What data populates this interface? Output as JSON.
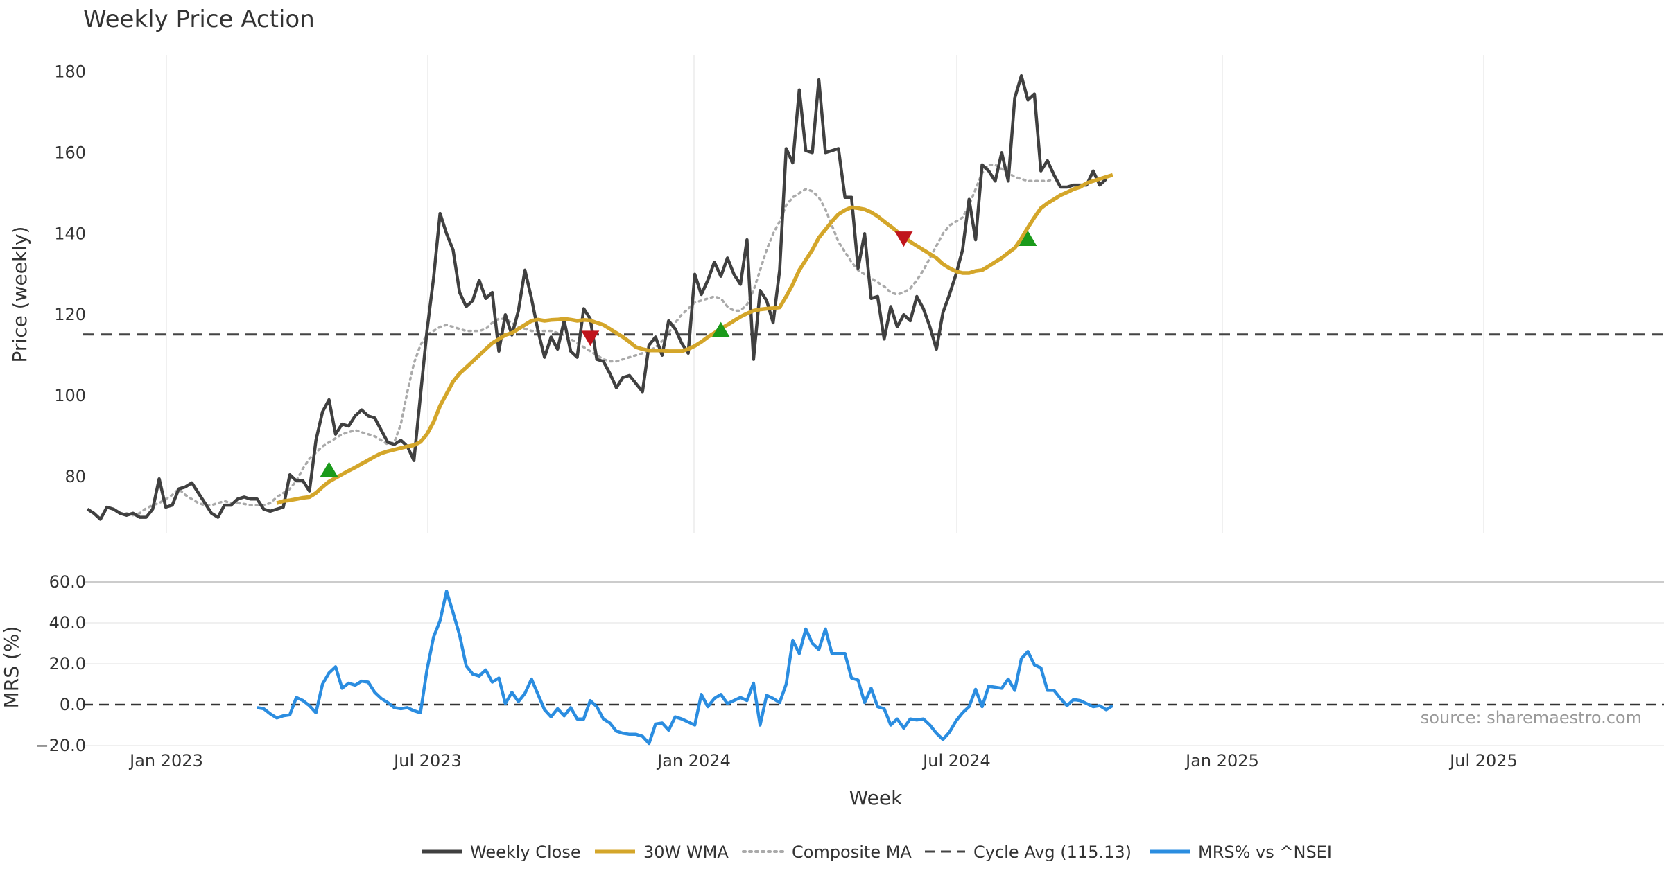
{
  "chart_data": {
    "type": "line",
    "title": "Weekly Price Action",
    "xlabel": "Week",
    "source": "source: sharemaestro.com",
    "x_ticks": [
      "Jan 2023",
      "Jul 2023",
      "Jan 2024",
      "Jul 2024",
      "Jan 2025",
      "Jul 2025"
    ],
    "x_start": "Nov 2022",
    "colors": {
      "close": "#404040",
      "wma": "#D4A62A",
      "composite": "#AAAAAA",
      "cycle": "#444444",
      "mrs": "#2B8DE0",
      "buy": "#1A9A1A",
      "sell": "#C0141C",
      "grid": "#EBEBEB"
    },
    "price_panel": {
      "ylabel": "Price (weekly)",
      "ylim": [
        66,
        184
      ],
      "yticks": [
        "80",
        "100",
        "120",
        "140",
        "160",
        "180"
      ],
      "cycle_avg": 115.13,
      "series": [
        {
          "name": "Weekly Close",
          "start_week": 0,
          "values": [
            72,
            71,
            69.5,
            72.5,
            72,
            71,
            70.5,
            71,
            70,
            70,
            72,
            79.5,
            72.5,
            73,
            77,
            77.5,
            78.5,
            76,
            73.5,
            71,
            70,
            73,
            73,
            74.5,
            75,
            74.5,
            74.5,
            72,
            71.5,
            72,
            72.5,
            80.5,
            79,
            79,
            76.5,
            89,
            96,
            99,
            90.5,
            93,
            92.5,
            95,
            96.5,
            95,
            94.5,
            91.5,
            88.5,
            88,
            89,
            87.5,
            84,
            100,
            116,
            129,
            145,
            140,
            136,
            125.5,
            122,
            123.5,
            128.5,
            124,
            125.5,
            111,
            120,
            115,
            121,
            131,
            124,
            116,
            109.5,
            114.5,
            111.5,
            118.5,
            111,
            109.5,
            121.5,
            119,
            109,
            108.5,
            105.5,
            102,
            104.5,
            105,
            103,
            101,
            112.5,
            114.5,
            110,
            118.5,
            116.5,
            113,
            110.5,
            130,
            125,
            128.5,
            133,
            129.5,
            134,
            130,
            127.5,
            138.5,
            109,
            126,
            123.5,
            118,
            131,
            161,
            157.5,
            175.5,
            160.5,
            160,
            178,
            160,
            160.5,
            161,
            149,
            149,
            131.5,
            140,
            124,
            124.5,
            114,
            122,
            117,
            120,
            118.5,
            124.5,
            121.5,
            117,
            111.5,
            120.5,
            125,
            130,
            136,
            148.5,
            138.5,
            157,
            155.5,
            153,
            160,
            153,
            173.5,
            179,
            173,
            174.5,
            155.5,
            158,
            154.5,
            151.5,
            151.5,
            152,
            152,
            152,
            155.5,
            152,
            153.5
          ]
        },
        {
          "name": "30W WMA",
          "start_week": 29,
          "values": [
            73.5,
            74,
            74.2,
            74.5,
            74.8,
            75,
            76,
            77.5,
            78.8,
            79.7,
            80.6,
            81.5,
            82.3,
            83.2,
            84.1,
            85,
            85.8,
            86.3,
            86.7,
            87.1,
            87.5,
            87.8,
            88.6,
            90.5,
            93.5,
            97.5,
            100.5,
            103.5,
            105.5,
            107,
            108.5,
            110,
            111.5,
            113,
            114,
            115,
            115.5,
            116.5,
            117.5,
            118.5,
            118.8,
            118.5,
            118.7,
            118.8,
            119,
            118.8,
            118.5,
            118.7,
            118.6,
            118,
            117.5,
            116.5,
            115.5,
            114.5,
            113.3,
            112,
            111.5,
            111.2,
            111.2,
            111.2,
            111,
            111,
            111,
            111.5,
            112.3,
            113.3,
            114.5,
            115.5,
            116.6,
            117.5,
            118.5,
            119.5,
            120.3,
            121,
            121.3,
            121.5,
            121.6,
            121.8,
            124.5,
            127.5,
            131,
            133.5,
            136,
            139,
            141,
            143,
            144.8,
            145.8,
            146.5,
            146.3,
            146,
            145.3,
            144.3,
            143,
            141.8,
            140.5,
            139.3,
            138,
            137,
            136,
            135,
            134,
            132.5,
            131.5,
            130.7,
            130.3,
            130.3,
            130.8,
            131,
            132,
            133,
            134,
            135.3,
            136.5,
            138.8,
            141.5,
            144,
            146.3,
            147.5,
            148.5,
            149.5,
            150.2,
            151,
            151.5,
            152.5,
            153,
            153.5,
            154,
            154.5
          ]
        },
        {
          "name": "Composite MA",
          "start_week": 6,
          "values": [
            71,
            70.5,
            71,
            72.2,
            73,
            73.5,
            74.5,
            75.5,
            77,
            75.5,
            74.5,
            73.5,
            73,
            73,
            73.5,
            74,
            73.5,
            73.5,
            73.3,
            73,
            73,
            73,
            73.5,
            75,
            76,
            77,
            79,
            82,
            84.5,
            86,
            87.5,
            88.5,
            89.5,
            90.5,
            91,
            91.5,
            91,
            90.5,
            90,
            89,
            88,
            88.5,
            93,
            101,
            108,
            112.5,
            115,
            116,
            117,
            117.5,
            117,
            116.5,
            116,
            116,
            116,
            116.5,
            118,
            119,
            119,
            118,
            117,
            116.5,
            116,
            116,
            116,
            116,
            115.5,
            115,
            114,
            113,
            112,
            111,
            110,
            109,
            108.5,
            108.5,
            109,
            109.5,
            110,
            110.5,
            111,
            112,
            113.5,
            115.5,
            118,
            120,
            121.5,
            123,
            123.5,
            124,
            124.5,
            124,
            122,
            121,
            121,
            122.5,
            126,
            131,
            136,
            140,
            143,
            147,
            149,
            150,
            151,
            150.5,
            149,
            146,
            142,
            138,
            135.5,
            133,
            131,
            130,
            129,
            128,
            127,
            125.5,
            125,
            125.5,
            126.5,
            128.5,
            131,
            134,
            137,
            140,
            142,
            143,
            144,
            147,
            151,
            155,
            157,
            157,
            156,
            155,
            154,
            153.5,
            153,
            153,
            153,
            153,
            153.5
          ]
        }
      ],
      "signals": [
        {
          "type": "buy",
          "week": 37,
          "value": 81.5
        },
        {
          "type": "sell",
          "week": 77,
          "value": 114.5
        },
        {
          "type": "buy",
          "week": 97,
          "value": 116
        },
        {
          "type": "sell",
          "week": 125,
          "value": 139
        },
        {
          "type": "buy",
          "week": 144,
          "value": 138.5
        }
      ]
    },
    "mrs_panel": {
      "ylabel": "MRS (%)",
      "ylim": [
        -20,
        60
      ],
      "yticks": [
        "60.0",
        "40.0",
        "20.0",
        "0.0",
        "−20.0"
      ],
      "zero_line": 0,
      "series": [
        {
          "name": "MRS% vs ^NSEI",
          "start_week": 26,
          "values": [
            -1.5,
            -2,
            -4.5,
            -6.5,
            -5.5,
            -5,
            3.5,
            2,
            -0.5,
            -4,
            10,
            15.5,
            18.5,
            8,
            10.5,
            9.5,
            11.5,
            11,
            6,
            3,
            1,
            -1.5,
            -2,
            -1.5,
            -3,
            -4,
            17,
            33,
            41,
            55.5,
            45,
            34,
            19,
            15,
            14,
            17,
            11,
            13,
            0.5,
            6,
            1.5,
            5.5,
            12.5,
            5,
            -2.5,
            -6,
            -2,
            -5.5,
            -1.5,
            -7,
            -7,
            2,
            -1,
            -7,
            -9,
            -13,
            -14,
            -14.5,
            -14.5,
            -15.5,
            -19,
            -9.5,
            -9,
            -12.5,
            -6,
            -7,
            -8.5,
            -10,
            5,
            -1,
            3,
            5,
            0.5,
            2,
            3.5,
            2,
            10.5,
            -10,
            4.5,
            3,
            1,
            10,
            31.5,
            25,
            37,
            30,
            27,
            37,
            25,
            25,
            25,
            13,
            12,
            1,
            8,
            -1,
            -2,
            -10,
            -7,
            -11.5,
            -7,
            -7.5,
            -7,
            -10,
            -14,
            -17,
            -13.5,
            -8,
            -4,
            -1,
            7.5,
            -1,
            9,
            8.5,
            8,
            12.5,
            7,
            22.5,
            26,
            19.5,
            18,
            7,
            7,
            3,
            -0.5,
            2.5,
            2,
            0.5,
            -1,
            -0.5,
            -2.5,
            -0.5
          ]
        }
      ]
    },
    "legend": [
      {
        "key": "close",
        "label": "Weekly Close",
        "style": "solid"
      },
      {
        "key": "wma",
        "label": "30W WMA",
        "style": "solid"
      },
      {
        "key": "composite",
        "label": "Composite MA",
        "style": "dotted"
      },
      {
        "key": "cycle",
        "label": "Cycle Avg (115.13)",
        "style": "dashed"
      },
      {
        "key": "mrs",
        "label": "MRS% vs ^NSEI",
        "style": "solid"
      }
    ]
  }
}
